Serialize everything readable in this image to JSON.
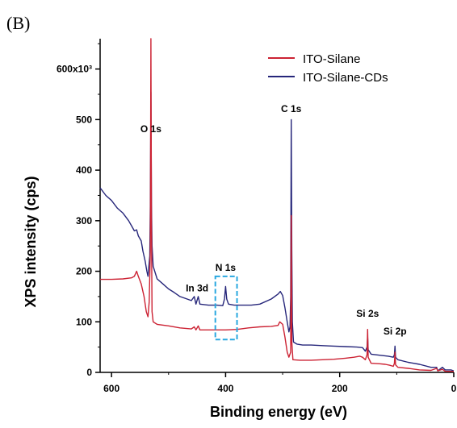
{
  "panel_label": "(B)",
  "chart_data": {
    "type": "line",
    "xlabel": "Binding energy (eV)",
    "ylabel": "XPS intensity (cps)",
    "xlim": [
      620,
      0
    ],
    "ylim": [
      0,
      660000
    ],
    "x_ticks": [
      600,
      400,
      200,
      0
    ],
    "x_tick_labels": [
      "600",
      "400",
      "200",
      "0"
    ],
    "y_ticks": [
      0,
      100000,
      200000,
      300000,
      400000,
      500000,
      600000
    ],
    "y_tick_labels": [
      "0",
      "100",
      "200",
      "300",
      "400",
      "500",
      "600x10³"
    ],
    "grid": false,
    "legend_position": "top-right",
    "series": [
      {
        "name": "ITO-Silane",
        "color": "#cc2233",
        "points": [
          [
            620,
            184000
          ],
          [
            600,
            184000
          ],
          [
            580,
            185000
          ],
          [
            565,
            187000
          ],
          [
            560,
            190000
          ],
          [
            556,
            200000
          ],
          [
            553,
            190000
          ],
          [
            548,
            175000
          ],
          [
            543,
            150000
          ],
          [
            539,
            120000
          ],
          [
            536,
            110000
          ],
          [
            534,
            140000
          ],
          [
            532,
            240000
          ],
          [
            531,
            660000
          ],
          [
            530,
            290000
          ],
          [
            529,
            120000
          ],
          [
            527,
            100000
          ],
          [
            520,
            95000
          ],
          [
            500,
            92000
          ],
          [
            480,
            88000
          ],
          [
            460,
            86000
          ],
          [
            455,
            90000
          ],
          [
            452,
            84000
          ],
          [
            448,
            92000
          ],
          [
            445,
            84000
          ],
          [
            420,
            84000
          ],
          [
            400,
            84000
          ],
          [
            380,
            85000
          ],
          [
            360,
            88000
          ],
          [
            340,
            90000
          ],
          [
            320,
            91000
          ],
          [
            308,
            93000
          ],
          [
            305,
            100000
          ],
          [
            300,
            95000
          ],
          [
            296,
            70000
          ],
          [
            292,
            40000
          ],
          [
            289,
            30000
          ],
          [
            286,
            40000
          ],
          [
            285,
            310000
          ],
          [
            284,
            60000
          ],
          [
            282,
            25000
          ],
          [
            270,
            24000
          ],
          [
            250,
            24000
          ],
          [
            230,
            25000
          ],
          [
            210,
            26000
          ],
          [
            190,
            28000
          ],
          [
            175,
            30000
          ],
          [
            165,
            32000
          ],
          [
            160,
            30000
          ],
          [
            155,
            25000
          ],
          [
            152,
            35000
          ],
          [
            151,
            85000
          ],
          [
            150,
            30000
          ],
          [
            145,
            18000
          ],
          [
            130,
            17000
          ],
          [
            120,
            16000
          ],
          [
            112,
            14000
          ],
          [
            106,
            12000
          ],
          [
            104,
            18000
          ],
          [
            103,
            40000
          ],
          [
            102,
            15000
          ],
          [
            98,
            10000
          ],
          [
            80,
            8000
          ],
          [
            60,
            5000
          ],
          [
            40,
            4000
          ],
          [
            30,
            8000
          ],
          [
            28,
            3000
          ],
          [
            20,
            6000
          ],
          [
            15,
            2000
          ],
          [
            0,
            2000
          ]
        ]
      },
      {
        "name": "ITO-Silane-CDs",
        "color": "#26267a",
        "points": [
          [
            620,
            365000
          ],
          [
            610,
            350000
          ],
          [
            600,
            340000
          ],
          [
            590,
            325000
          ],
          [
            580,
            315000
          ],
          [
            570,
            300000
          ],
          [
            565,
            290000
          ],
          [
            560,
            280000
          ],
          [
            556,
            282000
          ],
          [
            553,
            270000
          ],
          [
            548,
            260000
          ],
          [
            545,
            240000
          ],
          [
            541,
            220000
          ],
          [
            538,
            200000
          ],
          [
            536,
            190000
          ],
          [
            533,
            230000
          ],
          [
            532,
            330000
          ],
          [
            531,
            555000
          ],
          [
            530,
            330000
          ],
          [
            529,
            250000
          ],
          [
            527,
            210000
          ],
          [
            520,
            185000
          ],
          [
            510,
            175000
          ],
          [
            500,
            165000
          ],
          [
            490,
            158000
          ],
          [
            480,
            150000
          ],
          [
            470,
            146000
          ],
          [
            460,
            142000
          ],
          [
            455,
            150000
          ],
          [
            452,
            135000
          ],
          [
            448,
            150000
          ],
          [
            445,
            135000
          ],
          [
            430,
            133000
          ],
          [
            415,
            133000
          ],
          [
            405,
            132000
          ],
          [
            402,
            145000
          ],
          [
            400,
            170000
          ],
          [
            398,
            145000
          ],
          [
            395,
            135000
          ],
          [
            385,
            133000
          ],
          [
            370,
            133000
          ],
          [
            355,
            133000
          ],
          [
            340,
            135000
          ],
          [
            320,
            145000
          ],
          [
            308,
            155000
          ],
          [
            304,
            160000
          ],
          [
            300,
            152000
          ],
          [
            296,
            128000
          ],
          [
            292,
            100000
          ],
          [
            289,
            80000
          ],
          [
            287,
            90000
          ],
          [
            286,
            150000
          ],
          [
            285,
            500000
          ],
          [
            284,
            240000
          ],
          [
            283,
            100000
          ],
          [
            281,
            60000
          ],
          [
            275,
            56000
          ],
          [
            265,
            54000
          ],
          [
            250,
            54000
          ],
          [
            230,
            53000
          ],
          [
            210,
            52000
          ],
          [
            190,
            51000
          ],
          [
            170,
            50000
          ],
          [
            160,
            49000
          ],
          [
            155,
            42000
          ],
          [
            152,
            50000
          ],
          [
            151,
            70000
          ],
          [
            150,
            45000
          ],
          [
            145,
            36000
          ],
          [
            130,
            34000
          ],
          [
            115,
            32000
          ],
          [
            106,
            30000
          ],
          [
            104,
            35000
          ],
          [
            103,
            52000
          ],
          [
            102,
            30000
          ],
          [
            98,
            25000
          ],
          [
            80,
            20000
          ],
          [
            60,
            16000
          ],
          [
            40,
            10000
          ],
          [
            30,
            10000
          ],
          [
            28,
            3000
          ],
          [
            20,
            10000
          ],
          [
            15,
            5000
          ],
          [
            5,
            5000
          ],
          [
            0,
            3000
          ]
        ]
      }
    ],
    "annotations": [
      {
        "text": "O 1s",
        "x": 531,
        "y": 475000
      },
      {
        "text": "C 1s",
        "x": 285,
        "y": 515000
      },
      {
        "text": "In 3d",
        "x": 450,
        "y": 160000
      },
      {
        "text": "N 1s",
        "x": 400,
        "y": 201000
      },
      {
        "text": "Si 2s",
        "x": 151,
        "y": 110000
      },
      {
        "text": "Si 2p",
        "x": 103,
        "y": 75000
      }
    ],
    "highlight_box": {
      "x_range": [
        418,
        380
      ],
      "y_range": [
        65000,
        190000
      ],
      "color": "#29a8e0"
    }
  }
}
